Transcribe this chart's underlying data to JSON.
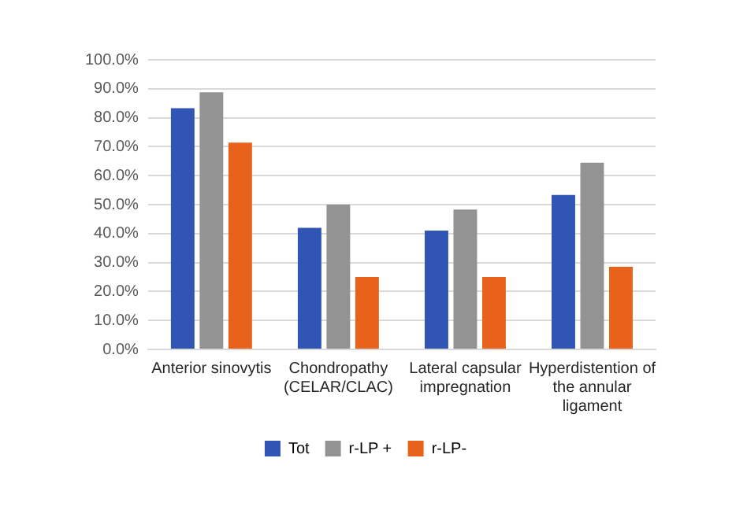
{
  "chart_data": {
    "type": "bar",
    "categories": [
      "Anterior sinovytis",
      "Chondropathy (CELAR/CLAC)",
      "Lateral capsular impregnation",
      "Hyperdistention of the annular ligament"
    ],
    "series": [
      {
        "name": "Tot",
        "color": "#3055b5",
        "values": [
          83.3,
          42,
          41,
          53.3
        ]
      },
      {
        "name": "r-LP +",
        "color": "#939393",
        "values": [
          88.8,
          50,
          48.3,
          64.5
        ]
      },
      {
        "name": "r-LP-",
        "color": "#e8621c",
        "values": [
          71.4,
          25,
          25,
          28.5
        ]
      }
    ],
    "ylim": [
      0,
      100
    ],
    "yticks": [
      {
        "value": 0,
        "label": "0.0%"
      },
      {
        "value": 10,
        "label": "10.0%"
      },
      {
        "value": 20,
        "label": "20.0%"
      },
      {
        "value": 30,
        "label": "30.0%"
      },
      {
        "value": 40,
        "label": "40.0%"
      },
      {
        "value": 50,
        "label": "50.0%"
      },
      {
        "value": 60,
        "label": "60.0%"
      },
      {
        "value": 70,
        "label": "70.0%"
      },
      {
        "value": 80,
        "label": "80.0%"
      },
      {
        "value": 90,
        "label": "90.0%"
      },
      {
        "value": 100,
        "label": "100.0%"
      }
    ],
    "grid": "y",
    "legend": "bottom"
  }
}
